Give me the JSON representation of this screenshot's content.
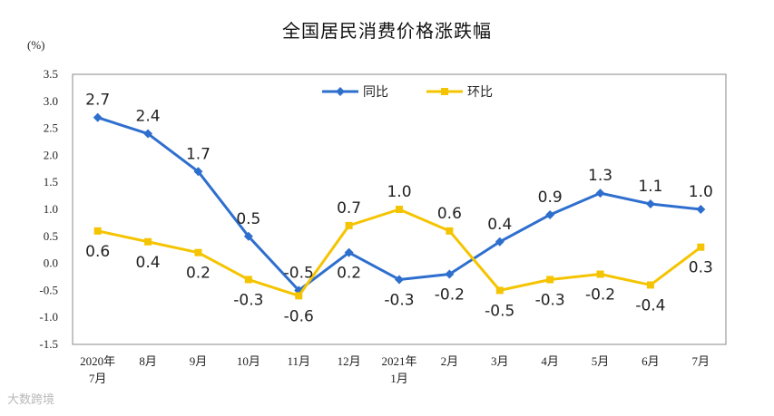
{
  "watermark": "大数跨境",
  "chart_data": {
    "type": "line",
    "title": "全国居民消费价格涨跌幅",
    "ylabel": "(%)",
    "xlabel": "",
    "ylim": [
      -1.5,
      3.5
    ],
    "yticks": [
      "3.5",
      "3.0",
      "2.5",
      "2.0",
      "1.5",
      "1.0",
      "0.5",
      "0.0",
      "-0.5",
      "-1.0",
      "-1.5"
    ],
    "ytick_values": [
      3.5,
      3.0,
      2.5,
      2.0,
      1.5,
      1.0,
      0.5,
      0.0,
      -0.5,
      -1.0,
      -1.5
    ],
    "categories": [
      [
        "2020年",
        "7月"
      ],
      [
        "8月"
      ],
      [
        "9月"
      ],
      [
        "10月"
      ],
      [
        "11月"
      ],
      [
        "12月"
      ],
      [
        "2021年",
        "1月"
      ],
      [
        "2月"
      ],
      [
        "3月"
      ],
      [
        "4月"
      ],
      [
        "5月"
      ],
      [
        "6月"
      ],
      [
        "7月"
      ]
    ],
    "legend_position": "top-center",
    "series": [
      {
        "name": "同比",
        "color": "#2e6fce",
        "marker": "diamond",
        "values": [
          2.7,
          2.4,
          1.7,
          0.5,
          -0.5,
          0.2,
          -0.3,
          -0.2,
          0.4,
          0.9,
          1.3,
          1.1,
          1.0
        ],
        "labels": [
          "2.7",
          "2.4",
          "1.7",
          "0.5",
          "-0.5",
          "0.2",
          "-0.3",
          "-0.2",
          "0.4",
          "0.9",
          "1.3",
          "1.1",
          "1.0"
        ]
      },
      {
        "name": "环比",
        "color": "#f5c400",
        "marker": "square",
        "values": [
          0.6,
          0.4,
          0.2,
          -0.3,
          -0.6,
          0.7,
          1.0,
          0.6,
          -0.5,
          -0.3,
          -0.2,
          -0.4,
          0.3
        ],
        "labels": [
          "0.6",
          "0.4",
          "0.2",
          "-0.3",
          "-0.6",
          "0.7",
          "1.0",
          "0.6",
          "-0.5",
          "-0.3",
          "-0.2",
          "-0.4",
          "0.3"
        ]
      }
    ]
  }
}
